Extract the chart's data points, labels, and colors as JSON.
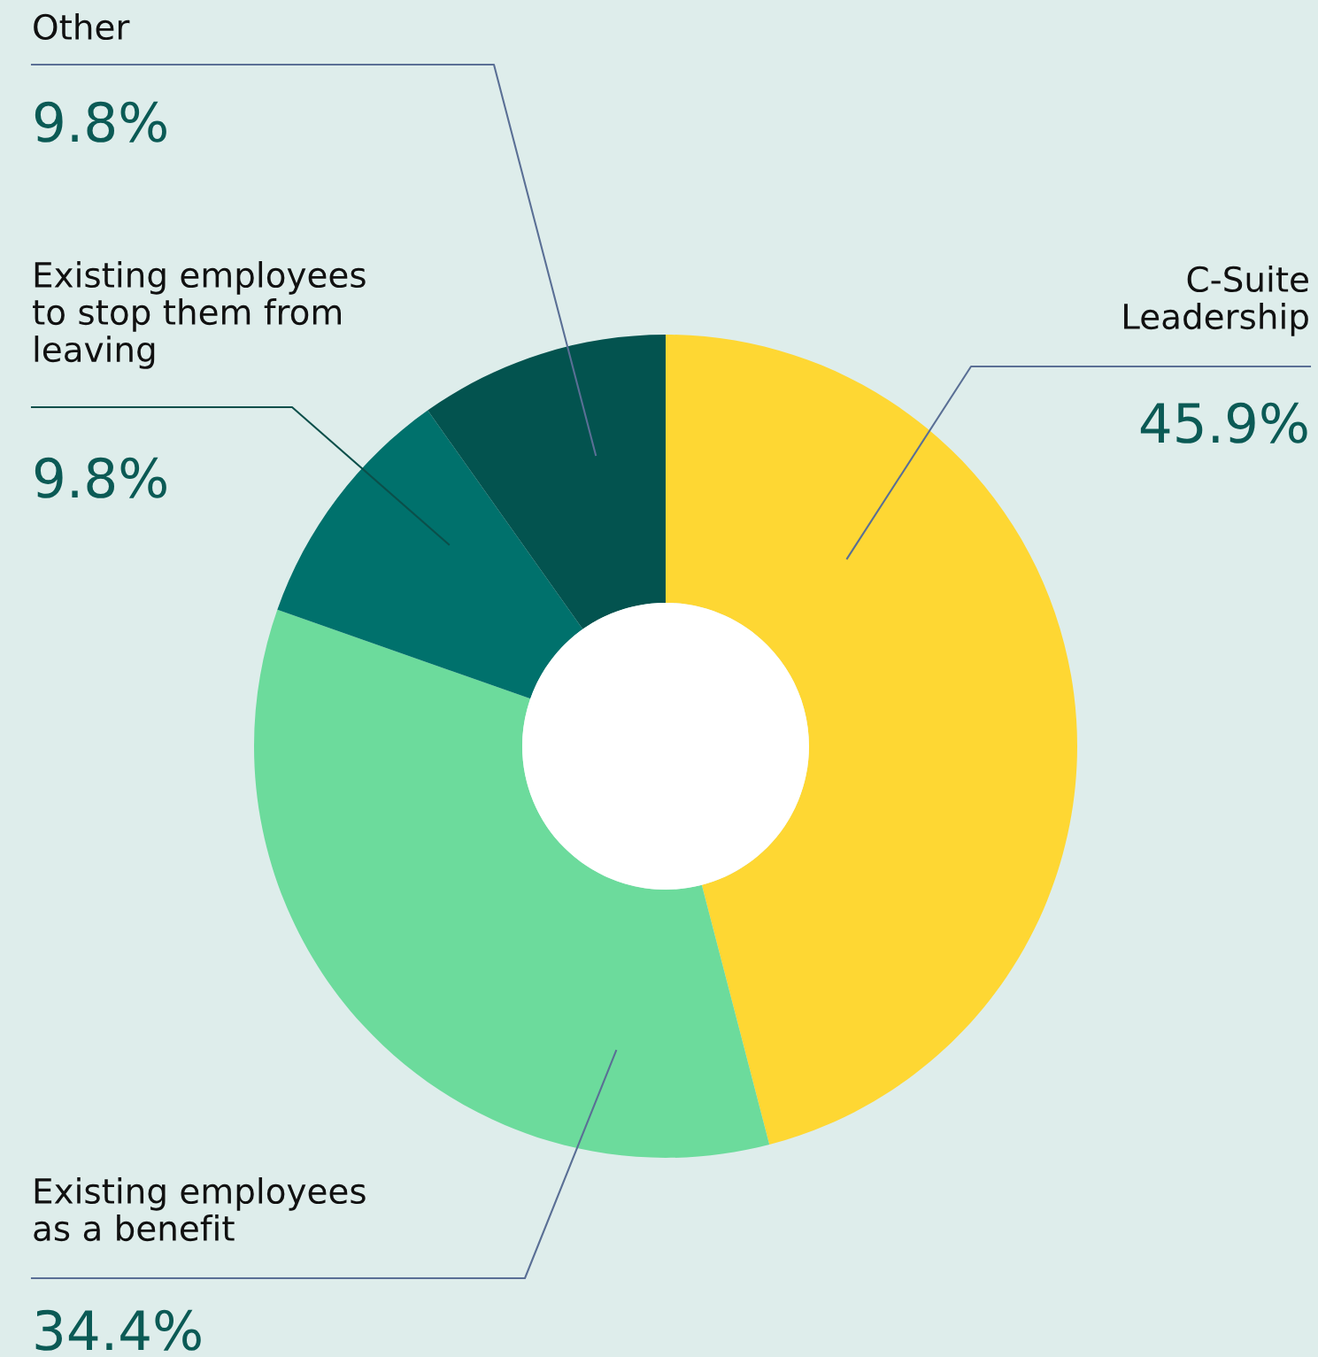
{
  "chart_data": {
    "type": "donut",
    "categories": [
      "C-Suite\nLeadership",
      "Existing employees\nas a benefit",
      "Existing employees\nto stop them from\nleaving",
      "Other"
    ],
    "values": [
      45.9,
      34.4,
      9.8,
      9.8
    ],
    "colors": [
      "#fed733",
      "#6cdb9c",
      "#00716c",
      "#03534f"
    ],
    "value_labels": [
      "45.9%",
      "34.4%",
      "9.8%",
      "9.8%"
    ]
  }
}
